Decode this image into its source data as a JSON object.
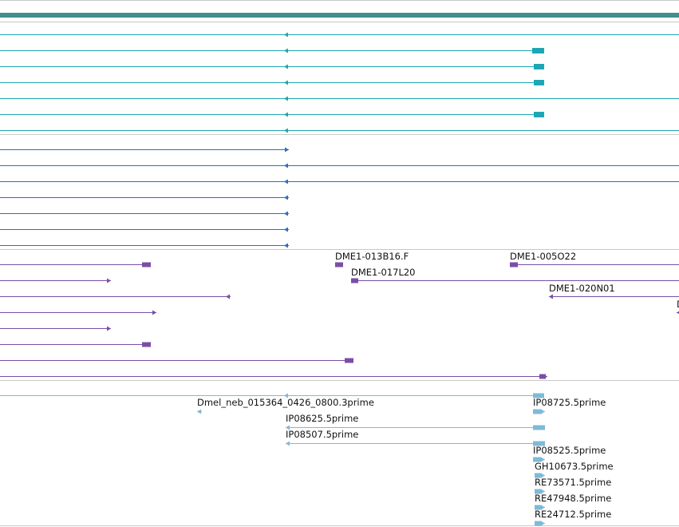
{
  "colors": {
    "background": "#ffffff",
    "separator": "#c8c8c8",
    "top_bar": "#3f8f8f",
    "gene_models": "#1ea6b6",
    "gene_models_alt": "#00a3b3",
    "cdna": "#2e6fb8",
    "bac_ends": "#7a4ea6",
    "est_reads": "#7fbad6",
    "label_text": "#111111"
  },
  "icons": {
    "left_arrow": "left-arrowhead-icon",
    "right_arrow": "right-arrowhead-icon",
    "exon_block": "exon-block-icon"
  },
  "tracks": [
    {
      "id": "gene-models",
      "features": [
        {
          "label": ""
        },
        {
          "label": ""
        },
        {
          "label": ""
        },
        {
          "label": ""
        },
        {
          "label": ""
        },
        {
          "label": ""
        },
        {
          "label": ""
        }
      ]
    },
    {
      "id": "cdna-alignments",
      "features": [
        {
          "label": ""
        },
        {
          "label": ""
        },
        {
          "label": ""
        },
        {
          "label": ""
        },
        {
          "label": ""
        },
        {
          "label": ""
        },
        {
          "label": ""
        }
      ]
    },
    {
      "id": "bac-ends",
      "features": [
        {
          "label": ""
        },
        {
          "label": ""
        },
        {
          "label": ""
        },
        {
          "label": ""
        },
        {
          "label": ""
        },
        {
          "label": ""
        },
        {
          "label": ""
        },
        {
          "label": ""
        },
        {
          "label": "DME1-013B16.F"
        },
        {
          "label": "DME1-005O22"
        },
        {
          "label": "DME1-017L20"
        },
        {
          "label": "DME1-020N01"
        },
        {
          "label": "D"
        }
      ]
    },
    {
      "id": "est-reads",
      "features": [
        {
          "label": ""
        },
        {
          "label": "Dmel_neb_015364_0426_0800.3prime"
        },
        {
          "label": "IP08725.5prime"
        },
        {
          "label": "IP08625.5prime"
        },
        {
          "label": "IP08507.5prime"
        },
        {
          "label": "IP08525.5prime"
        },
        {
          "label": "GH10673.5prime"
        },
        {
          "label": "RE73571.5prime"
        },
        {
          "label": "RE47948.5prime"
        },
        {
          "label": "RE24712.5prime"
        }
      ]
    }
  ]
}
